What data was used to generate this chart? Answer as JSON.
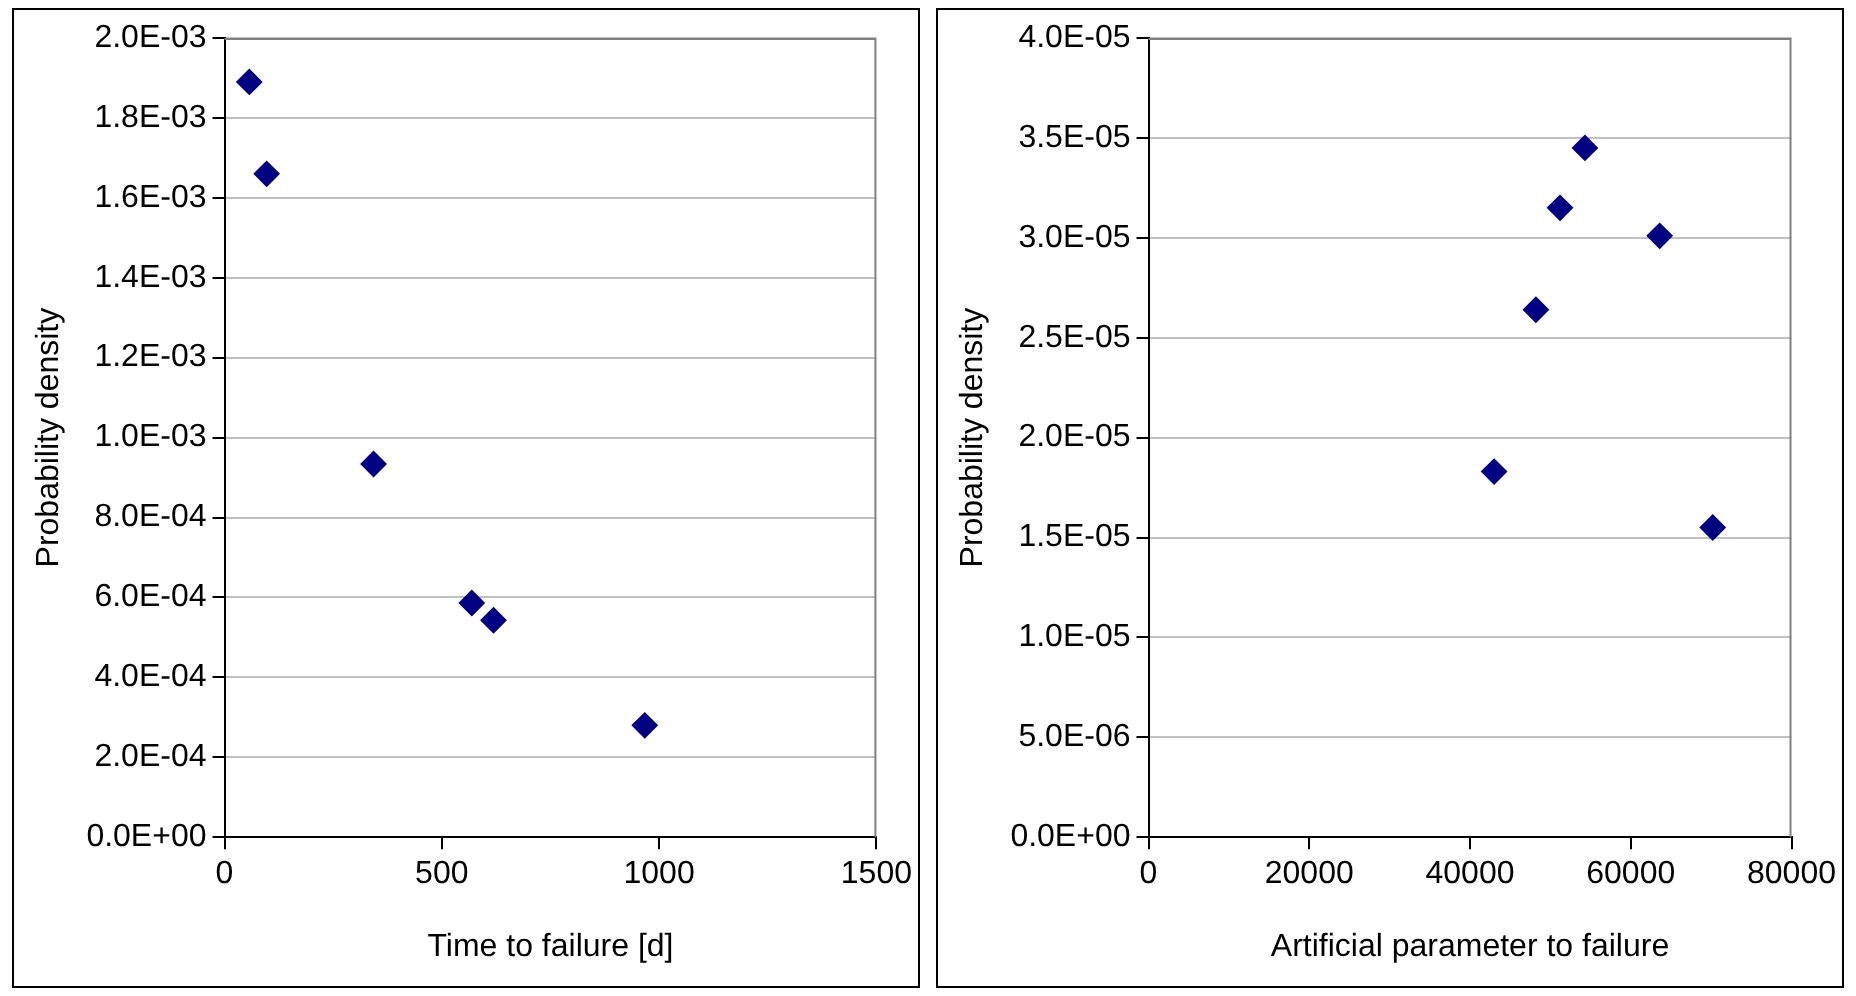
{
  "chart_data": [
    {
      "type": "scatter",
      "xlabel": "Time to failure [d]",
      "ylabel": "Probability density",
      "x": [
        57,
        97,
        343,
        569,
        619,
        967
      ],
      "values": [
        0.00189,
        0.00166,
        0.000934,
        0.000586,
        0.000543,
        0.00028
      ],
      "color": "#000080",
      "marker": "diamond",
      "grid": "y",
      "xlim": [
        0,
        1500
      ],
      "xticks": [
        0,
        500,
        1000,
        1500
      ],
      "ylim": [
        0,
        0.002
      ],
      "yticks": [
        {
          "value": 0,
          "label": "0.0E+00"
        },
        {
          "value": 0.0002,
          "label": "2.0E-04"
        },
        {
          "value": 0.0004,
          "label": "4.0E-04"
        },
        {
          "value": 0.0006,
          "label": "6.0E-04"
        },
        {
          "value": 0.0008,
          "label": "8.0E-04"
        },
        {
          "value": 0.001,
          "label": "1.0E-03"
        },
        {
          "value": 0.0012,
          "label": "1.2E-03"
        },
        {
          "value": 0.0014,
          "label": "1.4E-03"
        },
        {
          "value": 0.0016,
          "label": "1.6E-03"
        },
        {
          "value": 0.0018,
          "label": "1.8E-03"
        },
        {
          "value": 0.002,
          "label": "2.0E-03"
        }
      ]
    },
    {
      "type": "scatter",
      "xlabel": "Artificial parameter to failure",
      "ylabel": "Probability density",
      "x": [
        43000,
        48200,
        51200,
        54300,
        63600,
        70200
      ],
      "values": [
        1.83e-05,
        2.64e-05,
        3.15e-05,
        3.45e-05,
        3.01e-05,
        1.55e-05
      ],
      "color": "#000080",
      "marker": "diamond",
      "grid": "y",
      "xlim": [
        0,
        80000
      ],
      "xticks": [
        0,
        20000,
        40000,
        60000,
        80000
      ],
      "ylim": [
        0,
        4e-05
      ],
      "yticks": [
        {
          "value": 0,
          "label": "0.0E+00"
        },
        {
          "value": 5e-06,
          "label": "5.0E-06"
        },
        {
          "value": 1e-05,
          "label": "1.0E-05"
        },
        {
          "value": 1.5e-05,
          "label": "1.5E-05"
        },
        {
          "value": 2e-05,
          "label": "2.0E-05"
        },
        {
          "value": 2.5e-05,
          "label": "2.5E-05"
        },
        {
          "value": 3e-05,
          "label": "3.0E-05"
        },
        {
          "value": 3.5e-05,
          "label": "3.5E-05"
        },
        {
          "value": 4e-05,
          "label": "4.0E-05"
        }
      ]
    }
  ]
}
